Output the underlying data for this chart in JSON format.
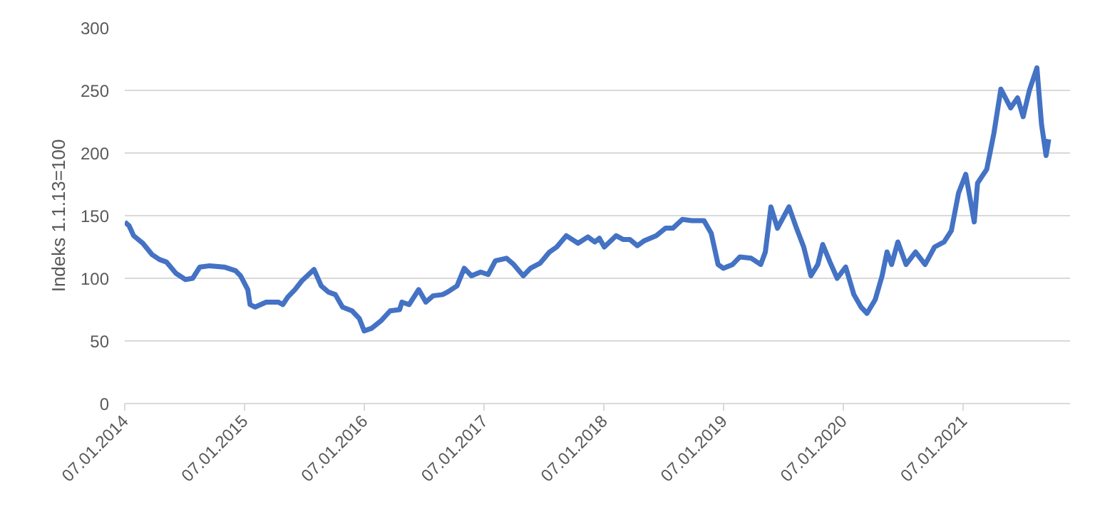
{
  "chart_data": {
    "type": "line",
    "ylabel": "Indeks 1.1.13=100",
    "x": [
      "2014-01-07",
      "2014-01-20",
      "2014-02-03",
      "2014-03-03",
      "2014-03-31",
      "2014-04-23",
      "2014-05-14",
      "2014-06-12",
      "2014-07-11",
      "2014-08-02",
      "2014-08-24",
      "2014-09-23",
      "2014-11-06",
      "2014-12-11",
      "2014-12-26",
      "2015-01-17",
      "2015-01-24",
      "2015-02-08",
      "2015-03-14",
      "2015-04-20",
      "2015-05-04",
      "2015-05-19",
      "2015-06-10",
      "2015-07-01",
      "2015-08-07",
      "2015-08-29",
      "2015-09-20",
      "2015-10-11",
      "2015-11-02",
      "2015-12-01",
      "2015-12-23",
      "2016-01-07",
      "2016-01-29",
      "2016-02-27",
      "2016-03-26",
      "2016-04-24",
      "2016-05-01",
      "2016-05-23",
      "2016-06-21",
      "2016-07-13",
      "2016-08-04",
      "2016-09-02",
      "2016-09-17",
      "2016-10-16",
      "2016-11-07",
      "2016-11-29",
      "2016-12-27",
      "2017-01-19",
      "2017-02-10",
      "2017-03-16",
      "2017-04-07",
      "2017-05-06",
      "2017-05-28",
      "2017-06-26",
      "2017-07-25",
      "2017-08-16",
      "2017-09-14",
      "2017-10-20",
      "2017-11-19",
      "2017-12-10",
      "2017-12-24",
      "2018-01-08",
      "2018-02-13",
      "2018-03-06",
      "2018-03-27",
      "2018-04-19",
      "2018-05-10",
      "2018-06-15",
      "2018-07-14",
      "2018-08-05",
      "2018-09-03",
      "2018-10-02",
      "2018-11-08",
      "2018-11-30",
      "2018-12-21",
      "2019-01-06",
      "2019-02-03",
      "2019-02-25",
      "2019-04-01",
      "2019-04-30",
      "2019-05-14",
      "2019-05-31",
      "2019-06-20",
      "2019-07-25",
      "2019-08-17",
      "2019-09-08",
      "2019-09-30",
      "2019-10-21",
      "2019-11-05",
      "2019-11-27",
      "2019-12-19",
      "2020-01-14",
      "2020-02-08",
      "2020-03-01",
      "2020-03-19",
      "2020-04-13",
      "2020-05-04",
      "2020-05-19",
      "2020-06-02",
      "2020-06-21",
      "2020-07-16",
      "2020-08-14",
      "2020-09-12",
      "2020-10-11",
      "2020-11-09",
      "2020-12-01",
      "2020-12-23",
      "2021-01-14",
      "2021-02-09",
      "2021-02-19",
      "2021-03-19",
      "2021-04-10",
      "2021-05-01",
      "2021-05-31",
      "2021-06-21",
      "2021-07-08",
      "2021-07-27",
      "2021-08-19",
      "2021-09-02",
      "2021-09-16",
      "2021-09-24"
    ],
    "series": [
      {
        "color": "#4472c4",
        "values": [
          145,
          142,
          134,
          128,
          119,
          115,
          113,
          104,
          99,
          100,
          109,
          110,
          109,
          106,
          102,
          91,
          79,
          77,
          81,
          81,
          79,
          85,
          91,
          98,
          107,
          94,
          89,
          87,
          77,
          74,
          68,
          58,
          60,
          66,
          74,
          75,
          81,
          79,
          91,
          81,
          86,
          87,
          89,
          94,
          108,
          102,
          105,
          103,
          114,
          116,
          111,
          102,
          108,
          112,
          121,
          125,
          134,
          128,
          133,
          129,
          132,
          125,
          134,
          131,
          131,
          126,
          130,
          134,
          140,
          140,
          147,
          146,
          146,
          136,
          111,
          108,
          111,
          117,
          116,
          111,
          121,
          157,
          140,
          157,
          140,
          125,
          102,
          111,
          127,
          113,
          100,
          109,
          87,
          77,
          72,
          83,
          102,
          121,
          111,
          129,
          111,
          121,
          111,
          125,
          129,
          138,
          168,
          183,
          145,
          176,
          187,
          216,
          251,
          236,
          244,
          229,
          250,
          268,
          223,
          198,
          211
        ]
      }
    ],
    "xlim": [
      "2014-01-07",
      "2021-11-28"
    ],
    "xticks": [
      {
        "value": "2014-01-07",
        "label": "07.01.2014"
      },
      {
        "value": "2015-01-07",
        "label": "07.01.2015"
      },
      {
        "value": "2016-01-07",
        "label": "07.01.2016"
      },
      {
        "value": "2017-01-07",
        "label": "07.01.2017"
      },
      {
        "value": "2018-01-07",
        "label": "07.01.2018"
      },
      {
        "value": "2019-01-07",
        "label": "07.01.2019"
      },
      {
        "value": "2020-01-07",
        "label": "07.01.2020"
      },
      {
        "value": "2021-01-07",
        "label": "07.01.2021"
      }
    ],
    "ylim": [
      0,
      300
    ],
    "yticks": [
      0,
      50,
      100,
      150,
      200,
      250,
      300
    ],
    "grid": "y",
    "marker": "none",
    "line_style": "solid"
  }
}
